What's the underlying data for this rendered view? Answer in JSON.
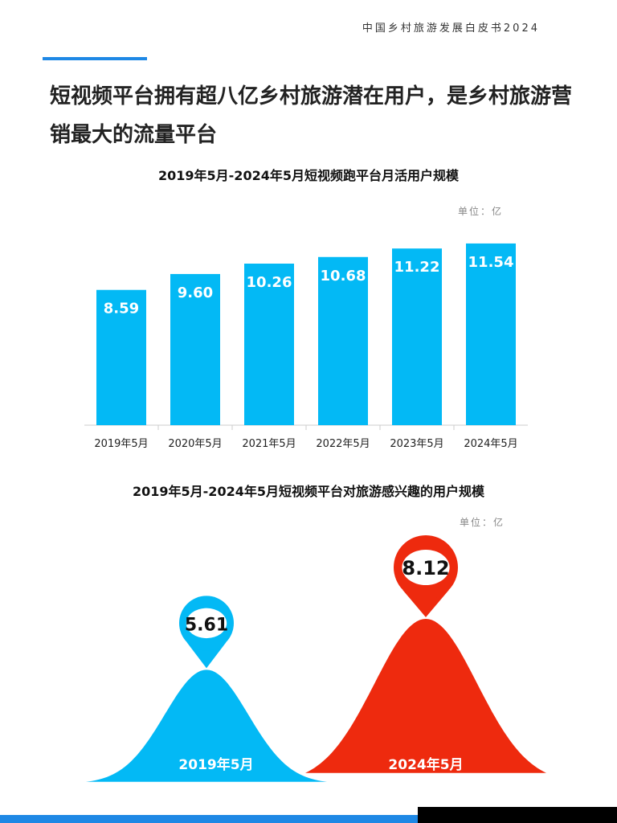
{
  "header": {
    "report_title": "中国乡村旅游发展白皮书2024"
  },
  "headline": "短视频平台拥有超八亿乡村旅游潜在用户，是乡村旅游营销最大的流量平台",
  "chart_data": [
    {
      "type": "bar",
      "title": "2019年5月-2024年5月短视频跑平台月活用户规模",
      "unit": "单位：亿",
      "categories": [
        "2019年5月",
        "2020年5月",
        "2021年5月",
        "2022年5月",
        "2023年5月",
        "2024年5月"
      ],
      "values": [
        8.59,
        9.6,
        10.26,
        10.68,
        11.22,
        11.54
      ],
      "value_labels": [
        "8.59",
        "9.60",
        "10.26",
        "10.68",
        "11.22",
        "11.54"
      ],
      "ylim": [
        0,
        12.2
      ],
      "color": "#03b9f5"
    },
    {
      "type": "area",
      "title": "2019年5月-2024年5月短视频平台对旅游感兴趣的用户规模",
      "unit": "单位：亿",
      "categories": [
        "2019年5月",
        "2024年5月"
      ],
      "values": [
        5.61,
        8.12
      ],
      "value_labels": [
        "5.61",
        "8.12"
      ],
      "ylim": [
        0,
        10
      ],
      "colors": [
        "#03b9f5",
        "#ee2a0e"
      ]
    }
  ]
}
